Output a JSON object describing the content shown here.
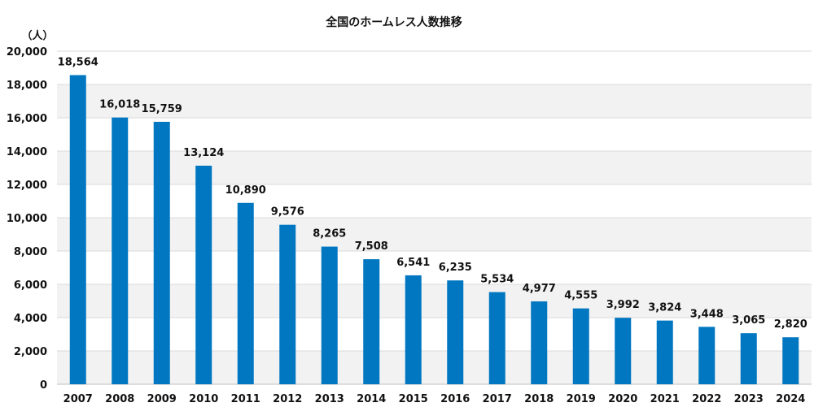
{
  "chart_data": {
    "type": "bar",
    "title": "全国のホームレス人数推移",
    "unit_label": "（人）",
    "categories": [
      "2007",
      "2008",
      "2009",
      "2010",
      "2011",
      "2012",
      "2013",
      "2014",
      "2015",
      "2016",
      "2017",
      "2018",
      "2019",
      "2020",
      "2021",
      "2022",
      "2023",
      "2024"
    ],
    "values": [
      18564,
      16018,
      15759,
      13124,
      10890,
      9576,
      8265,
      7508,
      6541,
      6235,
      5534,
      4977,
      4555,
      3992,
      3824,
      3448,
      3065,
      2820
    ],
    "data_labels": [
      "18,564",
      "16,018",
      "15,759",
      "13,124",
      "10,890",
      "9,576",
      "8,265",
      "7,508",
      "6,541",
      "6,235",
      "5,534",
      "4,977",
      "4,555",
      "3,992",
      "3,824",
      "3,448",
      "3,065",
      "2,820"
    ],
    "yticks": [
      0,
      2000,
      4000,
      6000,
      8000,
      10000,
      12000,
      14000,
      16000,
      18000,
      20000
    ],
    "ytick_labels": [
      "0",
      "2,000",
      "4,000",
      "6,000",
      "8,000",
      "10,000",
      "12,000",
      "14,000",
      "16,000",
      "18,000",
      "20,000"
    ],
    "ylim": [
      0,
      20000
    ],
    "bar_color": "#0077C0",
    "band_color": "#F2F2F2",
    "grid": true,
    "legend": "none"
  }
}
